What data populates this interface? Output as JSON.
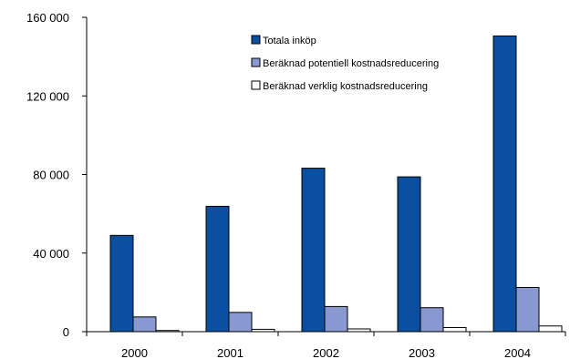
{
  "chart_data": {
    "type": "bar",
    "categories": [
      "2000",
      "2001",
      "2002",
      "2003",
      "2004"
    ],
    "series": [
      {
        "name": "Totala inköp",
        "values": [
          49000,
          63800,
          83200,
          78800,
          150500
        ],
        "color": "#0a4fa0"
      },
      {
        "name": "Beräknad potentiell kostnadsreducering",
        "values": [
          7500,
          9800,
          12800,
          12200,
          22500
        ],
        "color": "#8a98d2"
      },
      {
        "name": "Beräknad verklig kostnadsreducering",
        "values": [
          600,
          1200,
          1400,
          2100,
          2900
        ],
        "color": "#ffffff"
      }
    ],
    "yticks": [
      "0",
      "40 000",
      "80 000",
      "120 000",
      "160 000"
    ],
    "ylim": [
      0,
      160000
    ],
    "grid": false,
    "legend_position": "top-right"
  }
}
